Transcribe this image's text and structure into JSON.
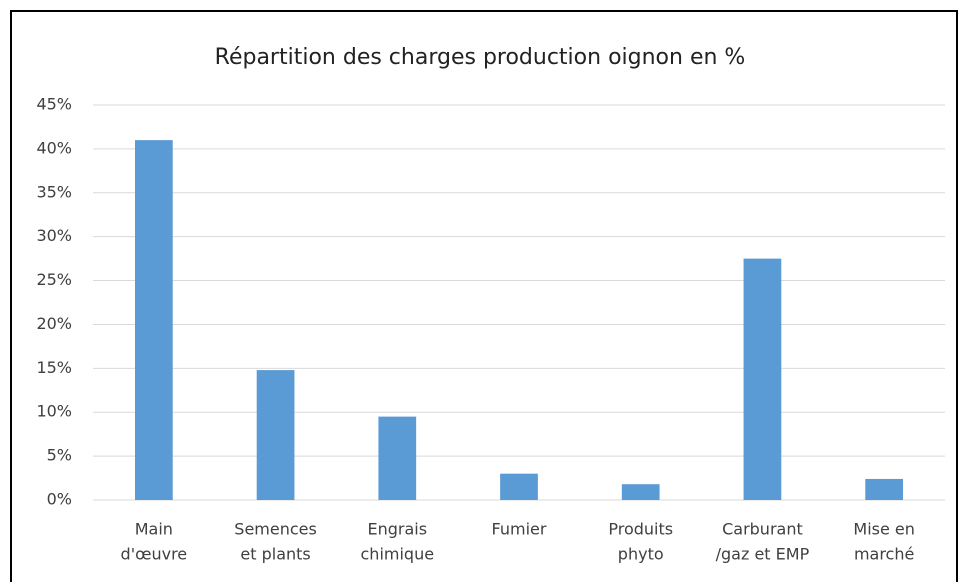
{
  "chart_data": {
    "type": "bar",
    "title": "Répartition des charges production oignon en %",
    "categories": [
      [
        "Main",
        "d'œuvre"
      ],
      [
        "Semences",
        "et plants"
      ],
      [
        "Engrais",
        "chimique"
      ],
      [
        "Fumier"
      ],
      [
        "Produits",
        "phyto"
      ],
      [
        "Carburant",
        "/gaz et EMP"
      ],
      [
        "Mise en",
        "marché"
      ]
    ],
    "values": [
      41,
      14.8,
      9.5,
      3,
      1.8,
      27.5,
      2.4
    ],
    "color": "#5b9bd5",
    "ylim": [
      0,
      45
    ],
    "yticks": [
      {
        "value": 0,
        "label": "0%"
      },
      {
        "value": 5,
        "label": "5%"
      },
      {
        "value": 10,
        "label": "10%"
      },
      {
        "value": 15,
        "label": "15%"
      },
      {
        "value": 20,
        "label": "20%"
      },
      {
        "value": 25,
        "label": "25%"
      },
      {
        "value": 30,
        "label": "30%"
      },
      {
        "value": 35,
        "label": "35%"
      },
      {
        "value": 40,
        "label": "40%"
      },
      {
        "value": 45,
        "label": "45%"
      }
    ],
    "grid": true
  }
}
